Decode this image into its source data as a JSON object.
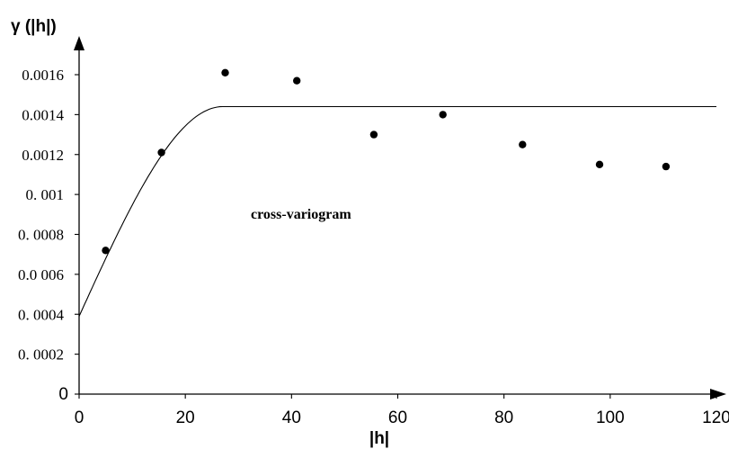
{
  "chart_data": {
    "type": "scatter",
    "title": "",
    "ylabel": "γ (|h|)",
    "xlabel": "|h|",
    "annotation": "cross-variogram",
    "xlim": [
      0,
      120
    ],
    "ylim": [
      0,
      0.0018
    ],
    "x_ticks": [
      0,
      20,
      40,
      60,
      80,
      100,
      120
    ],
    "x_tick_labels": [
      "0",
      "20",
      "40",
      "60",
      "80",
      "100",
      "120"
    ],
    "y_ticks": [
      0,
      0.0002,
      0.0004,
      0.0006,
      0.0008,
      0.001,
      0.0012,
      0.0014,
      0.0016
    ],
    "y_tick_labels": [
      "0",
      "0. 0002",
      "0. 0004",
      "0.0 006",
      "0. 0008",
      "0. 001",
      "0.0012",
      "0.0014",
      "0.0016"
    ],
    "grid": false,
    "legend": "none",
    "series": [
      {
        "kind": "points",
        "x": [
          5,
          15.5,
          27.5,
          41,
          55.5,
          68.5,
          83.5,
          98,
          110.5
        ],
        "y": [
          0.00072,
          0.00121,
          0.00161,
          0.00157,
          0.0013,
          0.0014,
          0.00125,
          0.00115,
          0.00114
        ]
      },
      {
        "kind": "model_curve",
        "model": "spherical",
        "nugget": 0.00039,
        "sill": 0.00144,
        "range": 27,
        "x_end": 120
      }
    ],
    "colors": {
      "points": "#000000",
      "curve": "#000000",
      "axes": "#000000"
    }
  }
}
